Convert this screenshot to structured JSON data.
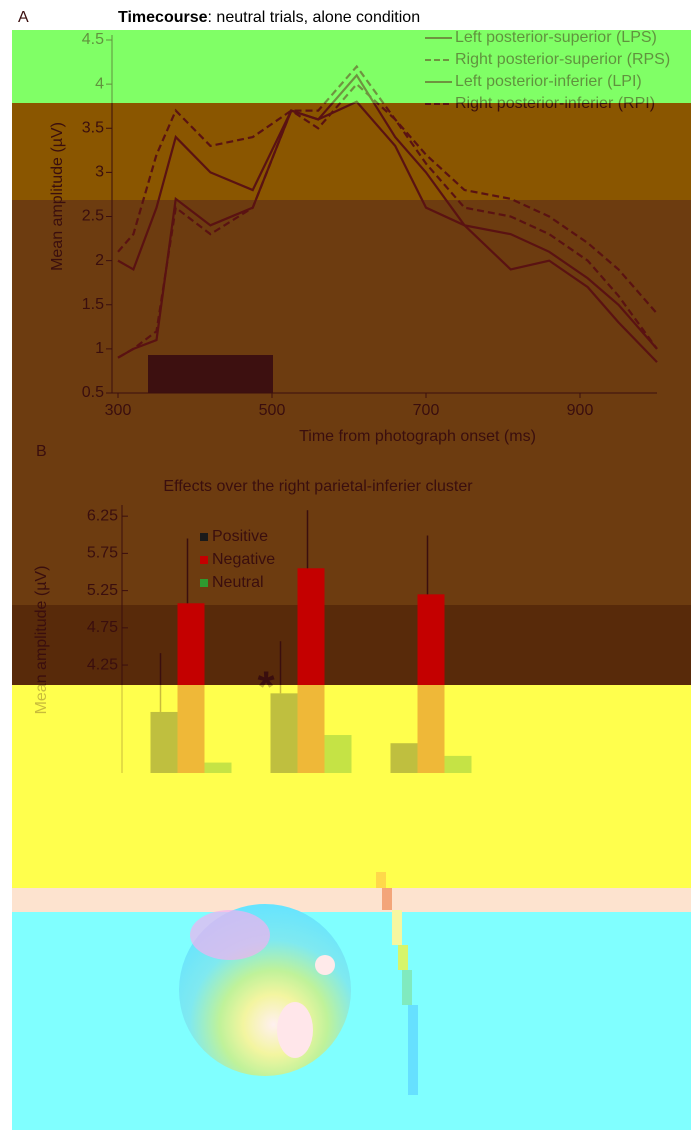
{
  "chart_data": [
    {
      "type": "line",
      "panel": "A",
      "title_parts": [
        "Timecourse",
        ": neutral trials, alone condition"
      ],
      "xlabel": "Time from photograph onset (ms)",
      "ylabel": "Mean amplitude (µV)",
      "x": [
        300,
        320,
        350,
        375,
        420,
        475,
        525,
        560,
        610,
        660,
        700,
        750,
        810,
        860,
        910,
        950,
        1000
      ],
      "xlim": [
        300,
        1000
      ],
      "xticks": [
        300,
        500,
        700,
        900
      ],
      "ylim": [
        0.5,
        4.5
      ],
      "yticks": [
        0.5,
        1,
        1.5,
        2,
        2.5,
        3,
        3.5,
        4,
        4.5
      ],
      "legend": "top-right",
      "series": [
        {
          "name": "Left posterior-superior (LPS)",
          "color": "#5a1212",
          "dash": false,
          "values": [
            2.0,
            1.9,
            2.6,
            3.4,
            3.0,
            2.8,
            3.7,
            3.6,
            4.1,
            3.4,
            3.0,
            2.4,
            2.3,
            2.1,
            1.8,
            1.5,
            1.0
          ]
        },
        {
          "name": "Right posterior-superior (RPS)",
          "color": "#5a1212",
          "dash": true,
          "values": [
            2.1,
            2.3,
            3.2,
            3.7,
            3.3,
            3.4,
            3.7,
            3.7,
            4.2,
            3.6,
            3.2,
            2.8,
            2.7,
            2.5,
            2.2,
            1.9,
            1.4
          ]
        },
        {
          "name": "Left posterior-inferier (LPI)",
          "color": "#5a1212",
          "dash": false,
          "values": [
            0.9,
            1.0,
            1.1,
            2.7,
            2.4,
            2.6,
            3.7,
            3.6,
            3.8,
            3.3,
            2.6,
            2.4,
            1.9,
            2.0,
            1.7,
            1.3,
            0.85
          ]
        },
        {
          "name": "Right posterior-inferier (RPI)",
          "color": "#5a1212",
          "dash": true,
          "values": [
            0.9,
            1.0,
            1.2,
            2.6,
            2.3,
            2.6,
            3.7,
            3.5,
            4.0,
            3.6,
            3.1,
            2.6,
            2.5,
            2.3,
            2.0,
            1.6,
            1.0
          ]
        }
      ]
    },
    {
      "type": "bar",
      "panel": "B",
      "title": "Effects over the right parietal-inferier cluster",
      "ylabel": "Mean amplitude (µV)",
      "categories": [
        null,
        null,
        null
      ],
      "ylim": [
        2.8,
        6.4
      ],
      "yticks": [
        4.25,
        4.75,
        5.25,
        5.75,
        6.25
      ],
      "legend": "top-left",
      "annotations": [
        "*"
      ],
      "series": [
        {
          "name": "Positive",
          "color": "#1a1a1a",
          "values": [
            3.62,
            3.87,
            3.2
          ],
          "errors": [
            0.79,
            0.7,
            null
          ]
        },
        {
          "name": "Negative",
          "color": "#c40000",
          "values": [
            5.08,
            5.55,
            5.2
          ],
          "errors": [
            0.87,
            0.78,
            0.79
          ]
        },
        {
          "name": "Neutral",
          "color": "#2f9a2f",
          "values": [
            2.94,
            3.31,
            3.03
          ],
          "errors": [
            null,
            null,
            null
          ]
        }
      ]
    }
  ]
}
